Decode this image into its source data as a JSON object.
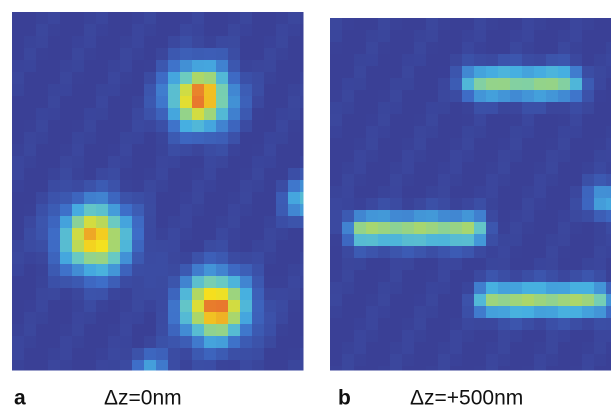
{
  "panels": [
    {
      "label": "a",
      "caption": "Δz=0nm"
    },
    {
      "label": "b",
      "caption": "Δz=+500nm"
    }
  ]
}
